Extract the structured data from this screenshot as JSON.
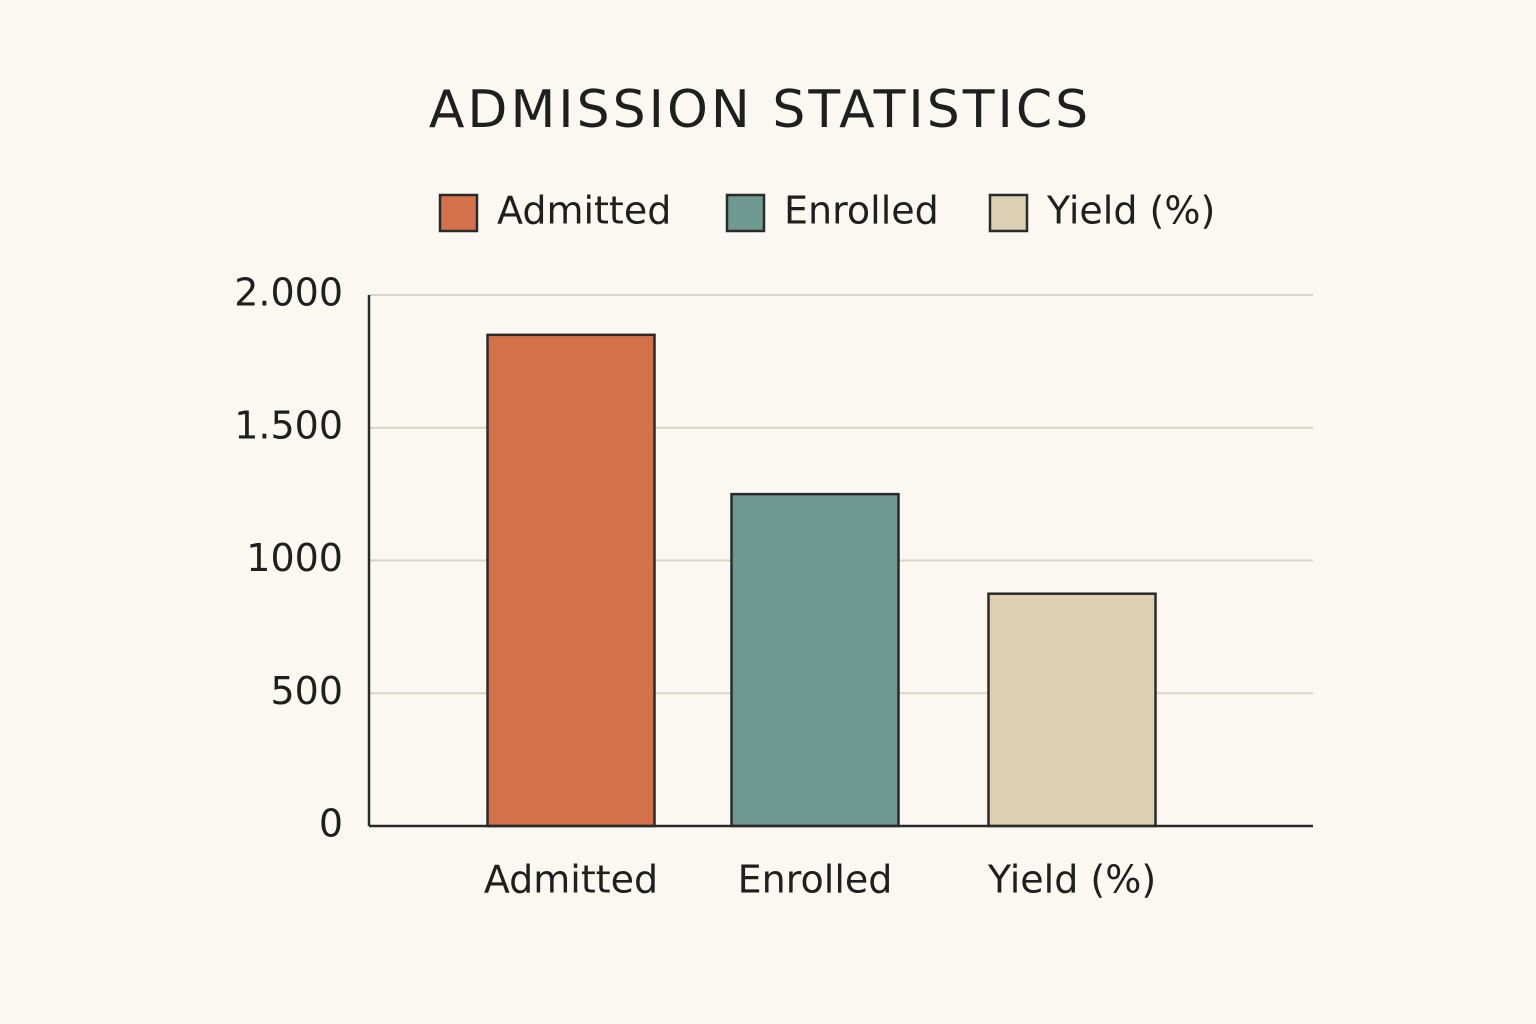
{
  "chart_data": {
    "type": "bar",
    "title": "ADMISSION STATISTICS",
    "categories": [
      "Admitted",
      "Enrolled",
      "Yield (%)"
    ],
    "values": [
      1850,
      1250,
      875
    ],
    "colors": [
      "#d2714a",
      "#6f9890",
      "#ddd0b3"
    ],
    "ylim": [
      0,
      2000
    ],
    "yticks": [
      0,
      500,
      1000,
      {
        "value": 1500,
        "label": "1.500"
      },
      {
        "value": 2000,
        "label": "2.000"
      }
    ],
    "grid": true,
    "legend": "top"
  }
}
